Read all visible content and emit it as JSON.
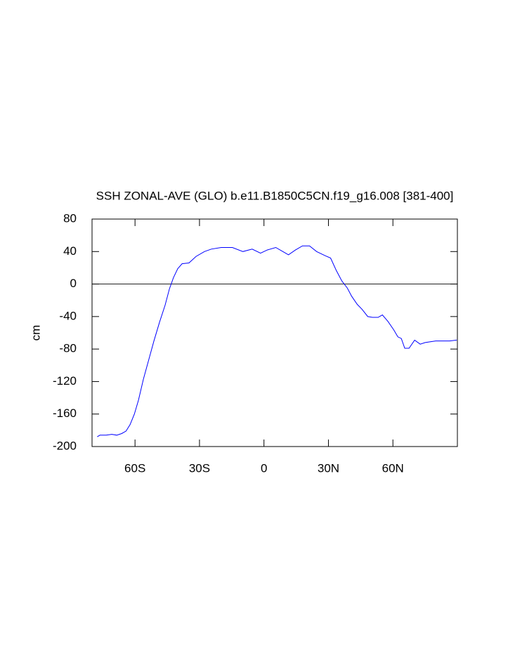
{
  "chart_data": {
    "type": "line",
    "title": "SSH ZONAL-AVE (GLO) b.e11.B1850C5CN.f19_g16.008 [381-400]",
    "ylabel": "cm",
    "x": [
      -77.6,
      -76.3,
      -73.4,
      -70.8,
      -68.5,
      -66.2,
      -64.2,
      -62.3,
      -60.3,
      -58.4,
      -56.1,
      -53.8,
      -51.2,
      -48.6,
      -46.0,
      -44.0,
      -42.1,
      -40.1,
      -38.1,
      -34.9,
      -31.6,
      -27.7,
      -24.5,
      -19.9,
      -14.7,
      -9.8,
      -5.5,
      -1.6,
      1.6,
      5.5,
      8.8,
      11.4,
      14.7,
      17.9,
      21.2,
      24.5,
      28.4,
      31.0,
      33.6,
      36.2,
      38.8,
      40.8,
      43.4,
      45.6,
      48.3,
      50.5,
      53.1,
      55.1,
      57.7,
      60.3,
      62.3,
      63.9,
      65.5,
      67.5,
      70.1,
      72.7,
      75.0,
      79.9,
      86.4,
      89.7
    ],
    "series": [
      {
        "name": "SSH",
        "color": "#0000ff",
        "values": [
          -188,
          -186,
          -186,
          -185,
          -186,
          -184,
          -181,
          -173,
          -160,
          -143,
          -117,
          -95,
          -70,
          -47,
          -26,
          -6,
          8,
          19,
          25,
          26,
          34,
          40,
          43,
          45,
          45,
          40,
          43,
          38,
          42,
          45,
          40,
          36,
          42,
          47,
          47,
          40,
          35,
          32,
          17,
          4,
          -5,
          -15,
          -25,
          -31,
          -40,
          -41,
          -41,
          -38,
          -46,
          -56,
          -65,
          -67,
          -79,
          -79,
          -69,
          -74,
          -72,
          -70,
          -70,
          -69
        ]
      }
    ],
    "xlim": [
      -80,
      90
    ],
    "xticks": [
      {
        "value": -60,
        "label": "60S"
      },
      {
        "value": -30,
        "label": "30S"
      },
      {
        "value": 0,
        "label": "0"
      },
      {
        "value": 30,
        "label": "30N"
      },
      {
        "value": 60,
        "label": "60N"
      }
    ],
    "ylim": [
      -200,
      80
    ],
    "yticks": [
      -200,
      -160,
      -120,
      -80,
      -40,
      0,
      40,
      80
    ],
    "reference_line": 0
  }
}
